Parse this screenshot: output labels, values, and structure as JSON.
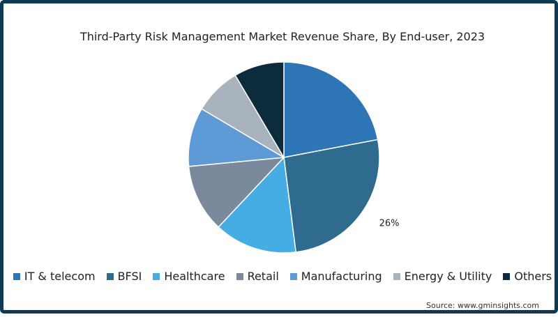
{
  "chart_data": {
    "type": "pie",
    "title": "Third-Party Risk Management Market Revenue Share, By End-user, 2023",
    "categories": [
      "IT & telecom",
      "BFSI",
      "Healthcare",
      "Retail",
      "Manufacturing",
      "Energy & Utility",
      "Others"
    ],
    "values": [
      22,
      26,
      14,
      11.5,
      10,
      8,
      8.5
    ],
    "colors": [
      "#2e75b6",
      "#2f6b8f",
      "#45ade3",
      "#7a899b",
      "#5d9ad6",
      "#a9b3bd",
      "#0c2b3d"
    ],
    "data_labels": [
      {
        "category": "BFSI",
        "text": "26%"
      }
    ],
    "legend_position": "bottom"
  },
  "source": "Source: www.gminsights.com"
}
